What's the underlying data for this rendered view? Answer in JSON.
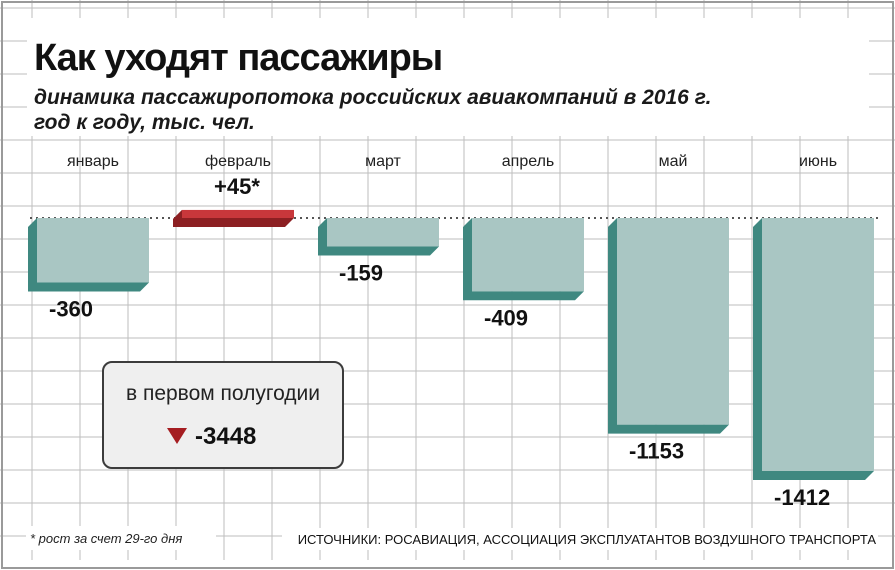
{
  "chart_data": {
    "type": "bar",
    "title": "Как уходят пассажиры",
    "subtitle": "динамика пассажиропотока российских авиакомпаний в 2016 г. год к году, тыс. чел.",
    "subtitle_lines": [
      "динамика пассажиропотока российских авиакомпаний в 2016 г.",
      "год к году, тыс. чел."
    ],
    "categories": [
      "январь",
      "февраль",
      "март",
      "апрель",
      "май",
      "июнь"
    ],
    "values": [
      -360,
      45,
      -159,
      -409,
      -1153,
      -1412
    ],
    "value_labels": [
      "-360",
      "+45*",
      "-159",
      "-409",
      "-1153",
      "-1412"
    ],
    "ylim": [
      -1500,
      80
    ],
    "grid": true,
    "colors": {
      "negative_face": "#a9c6c3",
      "negative_side": "#3f8880",
      "positive_face": "#c8373b",
      "positive_side": "#8c1f22",
      "summary_arrow": "#a51d21"
    },
    "summary": {
      "label": "в первом полугодии",
      "value": "-3448",
      "arrow_icon": "down-triangle-icon"
    },
    "footnote": "* рост за счет 29-го дня",
    "source": "ИСТОЧНИКИ: РОСАВИАЦИЯ, АССОЦИАЦИЯ ЭКСПЛУАТАНТОВ ВОЗДУШНОГО ТРАНСПОРТА"
  }
}
